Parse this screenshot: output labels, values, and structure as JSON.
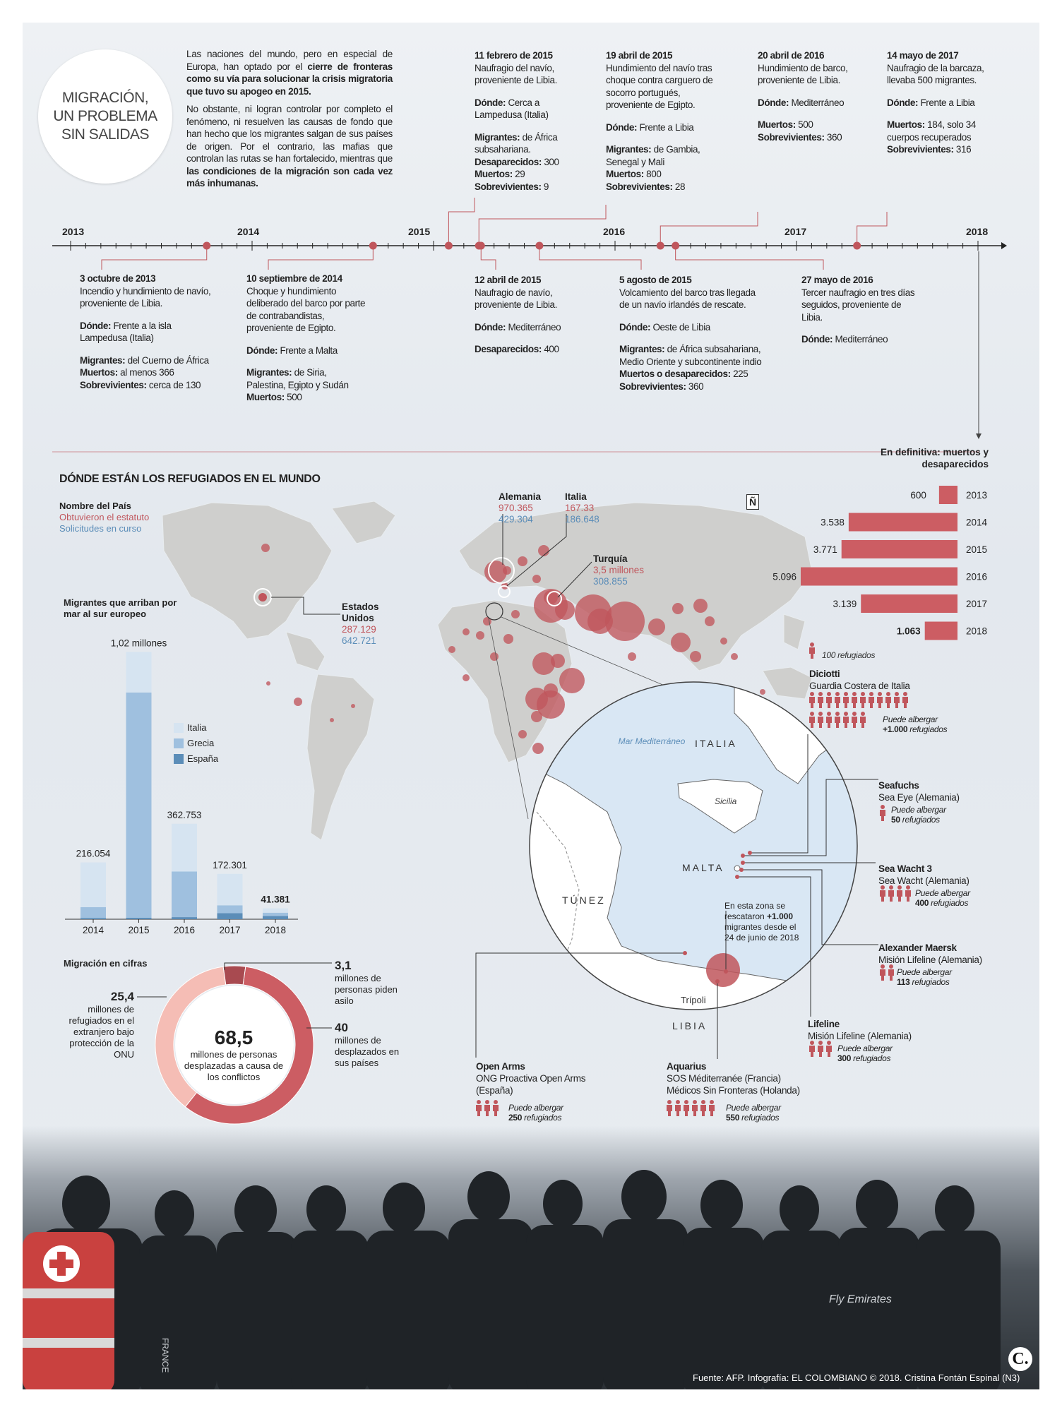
{
  "header": {
    "title_lines": [
      "MIGRACIÓN,",
      "UN PROBLEMA",
      "SIN SALIDAS"
    ],
    "intro_p1": "Las naciones del mundo, pero en especial de Europa, han optado por el",
    "intro_p1_bold": "cierre de fronteras como su vía para solucionar la crisis migratoria que tuvo su apogeo en 2015.",
    "intro_p2": "No obstante, ni logran controlar por completo el fenómeno, ni resuelven las causas de fondo que han hecho que los migrantes salgan de sus países de origen. Por el contrario, las mafias que controlan las rutas se han fortalecido, mientras que",
    "intro_p2_bold": "las condiciones de la migración son cada vez más inhumanas."
  },
  "timeline": {
    "years": [
      "2013",
      "2014",
      "2015",
      "2016",
      "2017",
      "2018"
    ],
    "events_top": [
      {
        "date": "11 febrero de 2015",
        "desc": "Naufragio del navío, proveniente de Libia.",
        "where_label": "Dónde:",
        "where": "Cerca a Lampedusa (Italia)",
        "l1": "Migrantes:",
        "v1": "de África subsahariana.",
        "l2": "Desaparecidos:",
        "v2": "300",
        "l3": "Muertos:",
        "v3": "29",
        "l4": "Sobrevivientes:",
        "v4": "9"
      },
      {
        "date": "19 abril de 2015",
        "desc": "Hundimiento del navío tras choque contra carguero de socorro portugués, proveniente de Egipto.",
        "where_label": "Dónde:",
        "where": "Frente a Libia",
        "l1": "Migrantes:",
        "v1": "de Gambia, Senegal y Mali",
        "l2": "Muertos:",
        "v2": "800",
        "l3": "Sobrevivientes:",
        "v3": "28"
      },
      {
        "date": "20 abril de 2016",
        "desc": "Hundimiento de barco, proveniente de Libia.",
        "where_label": "Dónde:",
        "where": "Mediterráneo",
        "l1": "Muertos:",
        "v1": "500",
        "l2": "Sobrevivientes:",
        "v2": "360"
      },
      {
        "date": "14 mayo de 2017",
        "desc": "Naufragio de la barcaza, llevaba 500 migrantes.",
        "where_label": "Dónde:",
        "where": "Frente a Libia",
        "l1": "Muertos:",
        "v1": "184, solo 34 cuerpos recuperados",
        "l2": "Sobrevivientes:",
        "v2": "316"
      }
    ],
    "events_bottom": [
      {
        "date": "3 octubre de 2013",
        "desc": "Incendio y hundimiento de navío, proveniente de Libia.",
        "where_label": "Dónde:",
        "where": "Frente a la isla Lampedusa (Italia)",
        "l1": "Migrantes:",
        "v1": "del Cuerno de África",
        "l2": "Muertos:",
        "v2": "al menos 366",
        "l3": "Sobrevivientes:",
        "v3": "cerca de 130"
      },
      {
        "date": "10 septiembre de 2014",
        "desc": "Choque y hundimiento deliberado del barco por parte de contrabandistas, proveniente de Egipto.",
        "where_label": "Dónde:",
        "where": "Frente a Malta",
        "l1": "Migrantes:",
        "v1": "de Siria, Palestina, Egipto y Sudán",
        "l2": "Muertos:",
        "v2": "500"
      },
      {
        "date": "12 abril de 2015",
        "desc": "Naufragio de navío, proveniente de Libia.",
        "where_label": "Dónde:",
        "where": "Mediterráneo",
        "l1": "Desaparecidos:",
        "v1": "400"
      },
      {
        "date": "5 agosto de 2015",
        "desc": "Volcamiento del barco tras llegada de un navío irlandés de rescate.",
        "where_label": "Dónde:",
        "where": "Oeste de Libia",
        "l1": "Migrantes:",
        "v1": "de África subsahariana, Medio Oriente y subcontinente indio",
        "l2": "Muertos o desaparecidos:",
        "v2": "225",
        "l3": "Sobrevivientes:",
        "v3": "360"
      },
      {
        "date": "27 mayo de 2016",
        "desc": "Tercer naufragio en tres días seguidos, proveniente de Libia.",
        "where_label": "Dónde:",
        "where": "Mediterráneo"
      }
    ]
  },
  "map": {
    "title": "DÓNDE ESTÁN LOS REFUGIADOS EN EL MUNDO",
    "legend_name": "Nombre del País",
    "legend_status": "Obtuvieron el estatuto",
    "legend_pending": "Solicitudes en curso",
    "north": "Ñ",
    "countries": [
      {
        "name": "Alemania",
        "status": "970.365",
        "pending": "429.304"
      },
      {
        "name": "Italia",
        "status": "167.33",
        "pending": "186.648"
      },
      {
        "name": "Turquía",
        "status": "3,5 millones",
        "pending": "308.855"
      },
      {
        "name": "Estados Unidos",
        "status": "287.129",
        "pending": "642.721"
      }
    ]
  },
  "deaths_chart": {
    "title": "En definitiva: muertos y desaparecidos"
  },
  "arrivals_chart": {
    "title": "Migrantes que arriban por mar al sur europeo",
    "legend": [
      "Italia",
      "Grecia",
      "España"
    ],
    "colors": [
      "#d6e4f1",
      "#9fc0df",
      "#5b8db8"
    ],
    "total_labels": [
      "216.054",
      "1,02 millones",
      "362.753",
      "172.301",
      "41.381"
    ]
  },
  "chart_data": [
    {
      "type": "bar",
      "title": "En definitiva: muertos y desaparecidos",
      "categories": [
        "2013",
        "2014",
        "2015",
        "2016",
        "2017",
        "2018"
      ],
      "values": [
        600,
        3538,
        3771,
        5096,
        3139,
        1063
      ],
      "value_labels": [
        "600",
        "3.538",
        "3.771",
        "5.096",
        "3.139",
        "1.063"
      ],
      "orientation": "horizontal",
      "color": "#cc5d63"
    },
    {
      "type": "bar",
      "title": "Migrantes que arriban por mar al sur europeo",
      "stacked": true,
      "categories": [
        "2014",
        "2015",
        "2016",
        "2017",
        "2018"
      ],
      "series": [
        {
          "name": "Italia",
          "values": [
            170100,
            153842,
            181436,
            119369,
            16566
          ]
        },
        {
          "name": "Grecia",
          "values": [
            41038,
            856723,
            173450,
            29718,
            12153
          ]
        },
        {
          "name": "España",
          "values": [
            4916,
            5435,
            7867,
            23214,
            12662
          ]
        }
      ],
      "totals": [
        216054,
        1020000,
        362753,
        172301,
        41381
      ],
      "ylim": [
        0,
        1020000
      ]
    },
    {
      "type": "pie",
      "title": "Migración en cifras",
      "center_value": "68,5",
      "center_label": "millones de personas desplazadas a causa de los conflictos",
      "slices": [
        {
          "value": 25.4,
          "value_label": "25,4",
          "label": "millones de refugiados en el extranjero bajo protección de la ONU",
          "color": "#f5bdb5"
        },
        {
          "value": 3.1,
          "value_label": "3,1",
          "label": "millones de personas piden asilo",
          "color": "#a84a50"
        },
        {
          "value": 40,
          "value_label": "40",
          "label": "millones de desplazados en sus países",
          "color": "#cc5d63"
        }
      ]
    }
  ],
  "inset": {
    "sea": "Mar Mediterráneo",
    "italy": "ITALIA",
    "sicily": "Sicilia",
    "malta": "MALTA",
    "tunisia": "TÚNEZ",
    "libya": "LIBIA",
    "tripoli": "Trípoli",
    "rescue_note_a": "En esta zona se rescataron",
    "rescue_note_b": "+1.000",
    "rescue_note_c": "migrantes desde el 24 de junio de 2018"
  },
  "ships": {
    "scale_note": "100 refugiados",
    "list": [
      {
        "name": "Diciotti",
        "org": "Guardia Costera de Italia",
        "cap_a": "Puede albergar",
        "cap_b": "+1.000",
        "cap_c": "refugiados"
      },
      {
        "name": "Seafuchs",
        "org": "Sea Eye (Alemania)",
        "cap_a": "Puede albergar",
        "cap_b": "50",
        "cap_c": "refugiados"
      },
      {
        "name": "Sea Wacht 3",
        "org": "Sea Wacht (Alemania)",
        "cap_a": "Puede albergar",
        "cap_b": "400",
        "cap_c": "refugiados"
      },
      {
        "name": "Alexander Maersk",
        "org": "Misión Lifeline (Alemania)",
        "cap_a": "Puede albergar",
        "cap_b": "113",
        "cap_c": "refugiados"
      },
      {
        "name": "Lifeline",
        "org": "Misión Lifeline (Alemania)",
        "cap_a": "Puede albergar",
        "cap_b": "300",
        "cap_c": "refugiados"
      },
      {
        "name": "Aquarius",
        "org": "SOS Méditerranée (Francia) Médicos Sin Fronteras (Holanda)",
        "cap_a": "Puede albergar",
        "cap_b": "550",
        "cap_c": "refugiados"
      },
      {
        "name": "Open Arms",
        "org": "ONG Proactiva Open Arms (España)",
        "cap_a": "Puede albergar",
        "cap_b": "250",
        "cap_c": "refugiados"
      }
    ]
  },
  "footer": {
    "credit": "Fuente: AFP. Infografía: EL COLOMBIANO © 2018. Cristina Fontán Espinal (N3)",
    "logo": "C.",
    "shirt_text": "FRANCE",
    "shirt_text2": "Fly Emirates"
  }
}
